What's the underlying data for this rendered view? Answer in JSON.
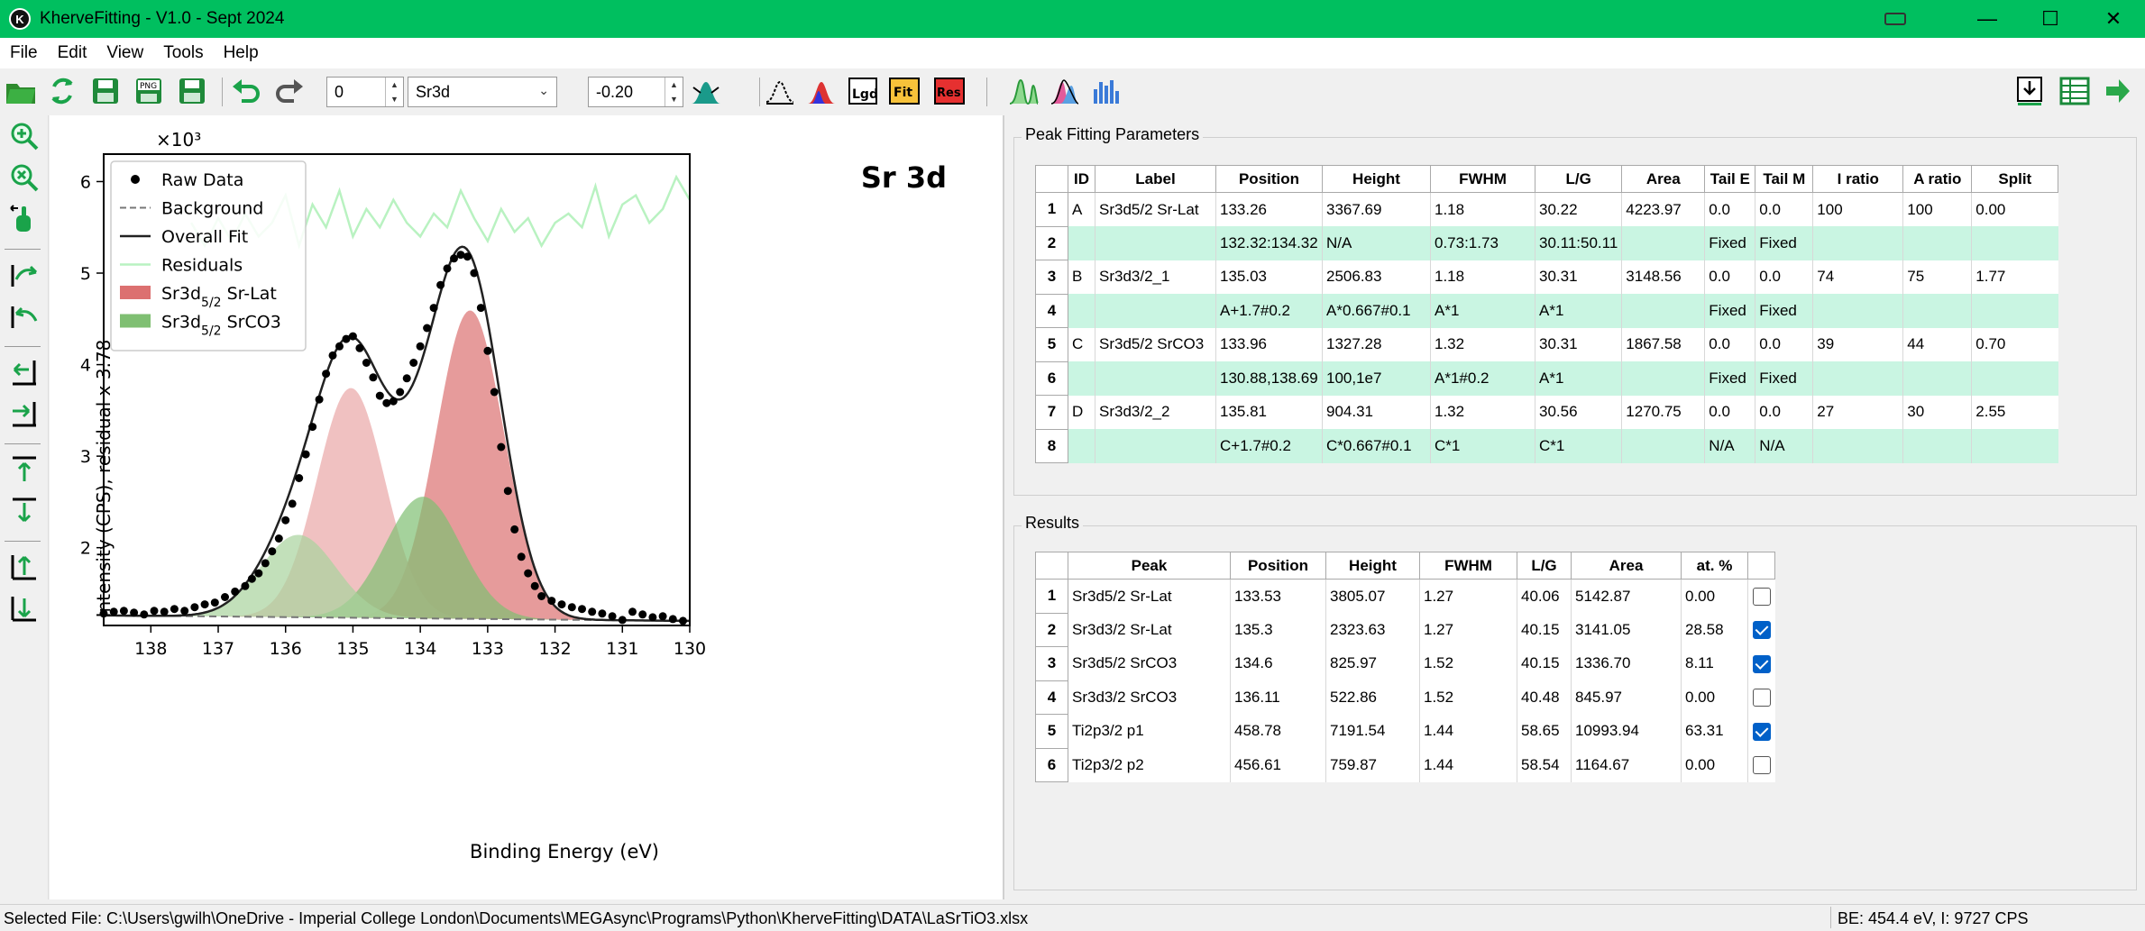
{
  "window": {
    "title": "KherveFitting - V1.0 - Sept 2024",
    "app_icon_glyph": "K"
  },
  "menu": [
    "File",
    "Edit",
    "View",
    "Tools",
    "Help"
  ],
  "toolbar": {
    "index_value": "0",
    "core_level": "Sr3d",
    "offset_value": "-0.20",
    "text_buttons": {
      "legend": "Lgd",
      "fit": "Fit",
      "residual": "Res"
    }
  },
  "colors": {
    "titlebar": "#00bf5f",
    "peak_a": "#dc7070",
    "peak_b": "#e9a6a6",
    "peak_c": "#7fbf72",
    "peak_d": "#a8d39c",
    "residual": "#b9f2c1",
    "alt_row": "#c9f5e2",
    "checkbox": "#0060c8"
  },
  "chart_data": {
    "type": "scatter",
    "title": "Sr 3d",
    "xlabel": "Binding Energy (eV)",
    "ylabel": "Intensity (CPS), residual x 3.78",
    "multiplier": "×10³",
    "xlim": [
      138.7,
      130.0
    ],
    "ylim": [
      1.15,
      6.3
    ],
    "x_reversed": true,
    "x_ticks": [
      "138",
      "137",
      "136",
      "135",
      "134",
      "133",
      "132",
      "131",
      "130"
    ],
    "y_ticks": [
      "2",
      "3",
      "4",
      "5",
      "6"
    ],
    "legend": {
      "position": "top-left",
      "entries": [
        {
          "label": "Raw Data",
          "kind": "dot"
        },
        {
          "label": "Background",
          "kind": "dash"
        },
        {
          "label": "Overall Fit",
          "kind": "line"
        },
        {
          "label": "Residuals",
          "kind": "residual"
        },
        {
          "label": "Sr3d",
          "sub": "5/2",
          "suffix": " Sr-Lat",
          "kind": "patch-red"
        },
        {
          "label": "Sr3d",
          "sub": "5/2",
          "suffix": " SrCO3",
          "kind": "patch-green"
        }
      ]
    },
    "background": {
      "x": [
        138.7,
        130.0
      ],
      "y": [
        1.26,
        1.2
      ]
    },
    "peaks": [
      {
        "id": "A",
        "center": 133.26,
        "height": 3.37,
        "fwhm": 1.18,
        "color": "#dc7070"
      },
      {
        "id": "B",
        "center": 135.03,
        "height": 2.51,
        "fwhm": 1.18,
        "color": "#e9a6a6"
      },
      {
        "id": "C",
        "center": 133.96,
        "height": 1.33,
        "fwhm": 1.32,
        "color": "#7fbf72"
      },
      {
        "id": "D",
        "center": 135.81,
        "height": 0.9,
        "fwhm": 1.32,
        "color": "#a8d39c"
      }
    ],
    "raw_data": {
      "x": [
        138.7,
        138.55,
        138.4,
        138.25,
        138.1,
        137.95,
        137.8,
        137.65,
        137.5,
        137.35,
        137.2,
        137.05,
        136.9,
        136.75,
        136.6,
        136.5,
        136.4,
        136.3,
        136.2,
        136.1,
        136.0,
        135.9,
        135.8,
        135.7,
        135.6,
        135.5,
        135.4,
        135.3,
        135.2,
        135.1,
        135.0,
        134.9,
        134.8,
        134.7,
        134.6,
        134.5,
        134.4,
        134.3,
        134.2,
        134.1,
        134.0,
        133.9,
        133.8,
        133.7,
        133.6,
        133.5,
        133.4,
        133.3,
        133.2,
        133.1,
        133.0,
        132.9,
        132.8,
        132.7,
        132.6,
        132.5,
        132.4,
        132.3,
        132.2,
        132.05,
        131.9,
        131.75,
        131.6,
        131.45,
        131.3,
        131.15,
        131.0,
        130.85,
        130.7,
        130.55,
        130.4,
        130.25,
        130.1
      ],
      "y": [
        1.28,
        1.3,
        1.31,
        1.29,
        1.27,
        1.31,
        1.3,
        1.33,
        1.31,
        1.35,
        1.38,
        1.4,
        1.46,
        1.52,
        1.58,
        1.66,
        1.72,
        1.83,
        1.96,
        2.1,
        2.3,
        2.48,
        2.76,
        3.02,
        3.32,
        3.62,
        3.9,
        4.1,
        4.2,
        4.28,
        4.31,
        4.18,
        4.02,
        3.86,
        3.66,
        3.58,
        3.6,
        3.7,
        3.85,
        4.02,
        4.2,
        4.4,
        4.62,
        4.87,
        5.05,
        5.16,
        5.2,
        5.18,
        5.0,
        4.62,
        4.15,
        3.7,
        3.1,
        2.62,
        2.2,
        1.9,
        1.72,
        1.58,
        1.47,
        1.42,
        1.38,
        1.35,
        1.33,
        1.3,
        1.28,
        1.25,
        1.21,
        1.3,
        1.27,
        1.24,
        1.25,
        1.22,
        1.2
      ]
    },
    "residuals": {
      "x": [
        137.4,
        137.2,
        137.0,
        136.8,
        136.6,
        136.4,
        136.2,
        136.0,
        135.8,
        135.6,
        135.4,
        135.2,
        135.0,
        134.8,
        134.6,
        134.4,
        134.2,
        134.0,
        133.8,
        133.6,
        133.4,
        133.2,
        133.0,
        132.8,
        132.6,
        132.4,
        132.2,
        132.0,
        131.8,
        131.6,
        131.4,
        131.2,
        131.0,
        130.8,
        130.6,
        130.4,
        130.2,
        130.0
      ],
      "y": [
        5.55,
        5.3,
        5.6,
        5.35,
        5.65,
        5.4,
        5.55,
        5.85,
        5.3,
        5.75,
        5.5,
        5.9,
        5.4,
        5.7,
        5.5,
        5.8,
        5.55,
        5.4,
        5.65,
        5.5,
        5.9,
        5.6,
        5.35,
        5.7,
        5.45,
        5.6,
        5.3,
        5.55,
        5.65,
        5.5,
        5.95,
        5.4,
        5.75,
        5.85,
        5.55,
        5.7,
        6.05,
        5.8
      ]
    }
  },
  "peak_params": {
    "title": "Peak Fitting Parameters",
    "headers": [
      "",
      "ID",
      "Label",
      "Position",
      "Height",
      "FWHM",
      "L/G",
      "Area",
      "Tail E",
      "Tail M",
      "I ratio",
      "A ratio",
      "Split"
    ],
    "rows": [
      [
        "1",
        "A",
        "Sr3d5/2 Sr-Lat",
        "133.26",
        "3367.69",
        "1.18",
        "30.22",
        "4223.97",
        "0.0",
        "0.0",
        "100",
        "100",
        "0.00"
      ],
      [
        "2",
        "",
        "",
        "132.32:134.32",
        "N/A",
        "0.73:1.73",
        "30.11:50.11",
        "",
        "Fixed",
        "Fixed",
        "",
        "",
        ""
      ],
      [
        "3",
        "B",
        "Sr3d3/2_1",
        "135.03",
        "2506.83",
        "1.18",
        "30.31",
        "3148.56",
        "0.0",
        "0.0",
        "74",
        "75",
        "1.77"
      ],
      [
        "4",
        "",
        "",
        "A+1.7#0.2",
        "A*0.667#0.1",
        "A*1",
        "A*1",
        "",
        "Fixed",
        "Fixed",
        "",
        "",
        ""
      ],
      [
        "5",
        "C",
        "Sr3d5/2 SrCO3",
        "133.96",
        "1327.28",
        "1.32",
        "30.31",
        "1867.58",
        "0.0",
        "0.0",
        "39",
        "44",
        "0.70"
      ],
      [
        "6",
        "",
        "",
        "130.88,138.69",
        "100,1e7",
        "A*1#0.2",
        "A*1",
        "",
        "Fixed",
        "Fixed",
        "",
        "",
        ""
      ],
      [
        "7",
        "D",
        "Sr3d3/2_2",
        "135.81",
        "904.31",
        "1.32",
        "30.56",
        "1270.75",
        "0.0",
        "0.0",
        "27",
        "30",
        "2.55"
      ],
      [
        "8",
        "",
        "",
        "C+1.7#0.2",
        "C*0.667#0.1",
        "C*1",
        "C*1",
        "",
        "N/A",
        "N/A",
        "",
        "",
        ""
      ]
    ]
  },
  "results": {
    "title": "Results",
    "headers": [
      "",
      "Peak",
      "Position",
      "Height",
      "FWHM",
      "L/G",
      "Area",
      "at. %",
      ""
    ],
    "rows": [
      [
        "1",
        "Sr3d5/2 Sr-Lat",
        "133.53",
        "3805.07",
        "1.27",
        "40.06",
        "5142.87",
        "0.00"
      ],
      [
        "2",
        "Sr3d3/2 Sr-Lat",
        "135.3",
        "2323.63",
        "1.27",
        "40.15",
        "3141.05",
        "28.58"
      ],
      [
        "3",
        "Sr3d5/2 SrCO3",
        "134.6",
        "825.97",
        "1.52",
        "40.15",
        "1336.70",
        "8.11"
      ],
      [
        "4",
        "Sr3d3/2 SrCO3",
        "136.11",
        "522.86",
        "1.52",
        "40.48",
        "845.97",
        "0.00"
      ],
      [
        "5",
        "Ti2p3/2 p1",
        "458.78",
        "7191.54",
        "1.44",
        "58.65",
        "10993.94",
        "63.31"
      ],
      [
        "6",
        "Ti2p3/2 p2",
        "456.61",
        "759.87",
        "1.44",
        "58.54",
        "1164.67",
        "0.00"
      ]
    ],
    "checked": [
      false,
      true,
      true,
      false,
      true,
      false
    ]
  },
  "status": {
    "selected_file": "Selected File: C:\\Users\\gwilh\\OneDrive - Imperial College London\\Documents\\MEGAsync\\Programs\\Python\\KherveFitting\\DATA\\LaSrTiO3.xlsx",
    "cursor_readout": "BE: 454.4 eV, I: 9727 CPS"
  }
}
